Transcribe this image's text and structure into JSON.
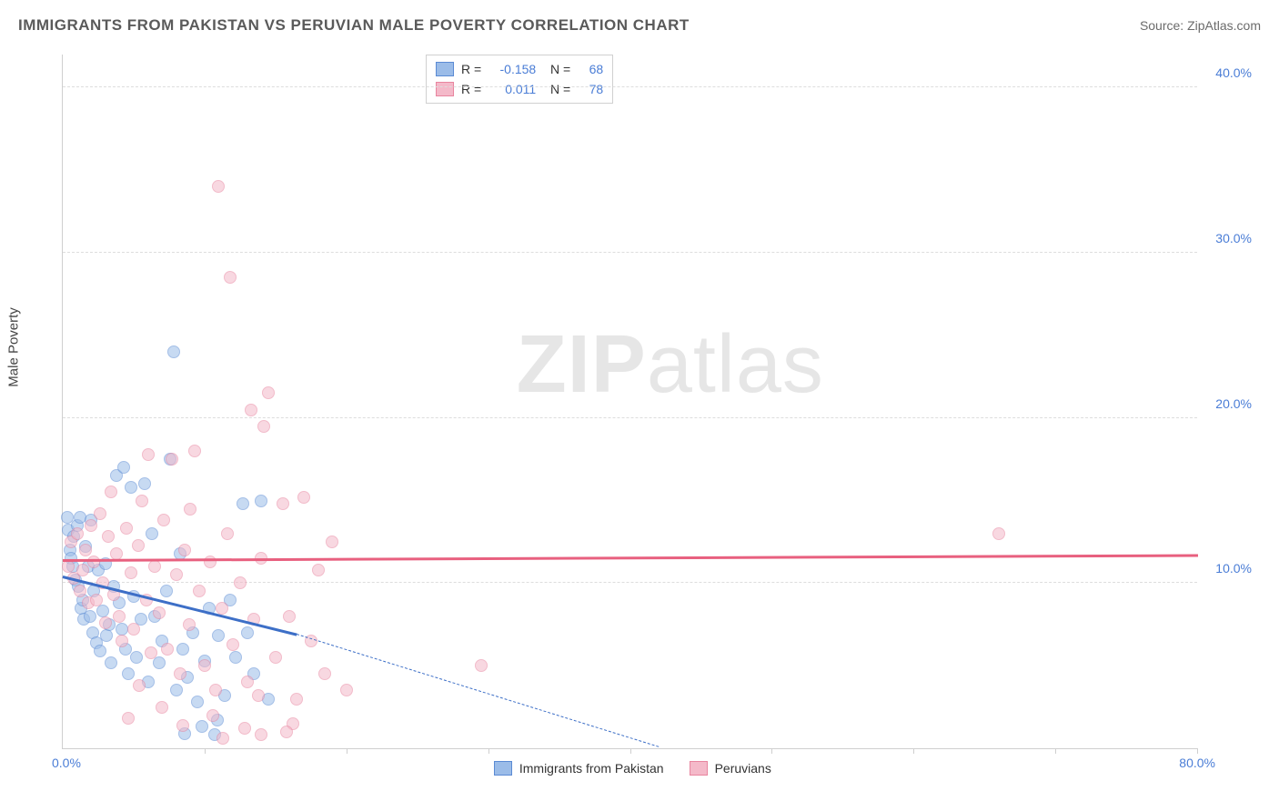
{
  "header": {
    "title": "IMMIGRANTS FROM PAKISTAN VS PERUVIAN MALE POVERTY CORRELATION CHART",
    "source": "Source: ZipAtlas.com"
  },
  "watermark": {
    "zip": "ZIP",
    "atlas": "atlas"
  },
  "chart": {
    "type": "scatter",
    "ylabel": "Male Poverty",
    "xlim": [
      0,
      80
    ],
    "ylim": [
      0,
      42
    ],
    "yticks": [
      10,
      20,
      30,
      40
    ],
    "ytick_labels": [
      "10.0%",
      "20.0%",
      "30.0%",
      "40.0%"
    ],
    "xticks": [
      0,
      10,
      20,
      30,
      40,
      50,
      60,
      70,
      80
    ],
    "x_origin_label": "0.0%",
    "x_max_label": "80.0%",
    "grid_color": "#dddddd",
    "axis_color": "#cfcfcf",
    "background_color": "#ffffff",
    "marker_radius": 7,
    "marker_opacity": 0.55,
    "marker_stroke_opacity": 0.85,
    "series": [
      {
        "name": "Immigrants from Pakistan",
        "fill": "#9bbce8",
        "stroke": "#5b8bd4",
        "r_value": "-0.158",
        "n_value": "68",
        "regression": {
          "x1": 0,
          "y1": 10.5,
          "x2": 16.5,
          "y2": 7.0,
          "extend_x2": 42,
          "extend_y2": 0.2,
          "color": "#3d6fc7"
        },
        "points": [
          [
            0.3,
            14.0
          ],
          [
            0.4,
            13.2
          ],
          [
            0.5,
            12.0
          ],
          [
            0.6,
            11.5
          ],
          [
            0.7,
            11.0
          ],
          [
            0.8,
            12.8
          ],
          [
            0.9,
            10.2
          ],
          [
            1.0,
            13.5
          ],
          [
            1.1,
            9.8
          ],
          [
            1.2,
            14.0
          ],
          [
            1.3,
            8.5
          ],
          [
            1.4,
            9.0
          ],
          [
            1.5,
            7.8
          ],
          [
            1.6,
            12.2
          ],
          [
            1.8,
            11.0
          ],
          [
            1.9,
            8.0
          ],
          [
            2.0,
            13.8
          ],
          [
            2.1,
            7.0
          ],
          [
            2.2,
            9.5
          ],
          [
            2.4,
            6.4
          ],
          [
            2.5,
            10.8
          ],
          [
            2.6,
            5.9
          ],
          [
            2.8,
            8.3
          ],
          [
            3.0,
            11.2
          ],
          [
            3.1,
            6.8
          ],
          [
            3.3,
            7.5
          ],
          [
            3.4,
            5.2
          ],
          [
            3.6,
            9.8
          ],
          [
            3.8,
            16.5
          ],
          [
            4.0,
            8.8
          ],
          [
            4.2,
            7.2
          ],
          [
            4.4,
            6.0
          ],
          [
            4.6,
            4.5
          ],
          [
            4.8,
            15.8
          ],
          [
            5.0,
            9.2
          ],
          [
            5.2,
            5.5
          ],
          [
            5.5,
            7.8
          ],
          [
            5.8,
            16.0
          ],
          [
            6.0,
            4.0
          ],
          [
            6.3,
            13.0
          ],
          [
            6.5,
            8.0
          ],
          [
            6.8,
            5.2
          ],
          [
            7.0,
            6.5
          ],
          [
            7.3,
            9.5
          ],
          [
            7.6,
            17.5
          ],
          [
            8.0,
            3.5
          ],
          [
            8.3,
            11.8
          ],
          [
            8.5,
            6.0
          ],
          [
            8.8,
            4.3
          ],
          [
            9.2,
            7.0
          ],
          [
            9.5,
            2.8
          ],
          [
            7.8,
            24.0
          ],
          [
            10.0,
            5.3
          ],
          [
            10.3,
            8.5
          ],
          [
            10.7,
            0.8
          ],
          [
            11.0,
            6.8
          ],
          [
            11.4,
            3.2
          ],
          [
            11.8,
            9.0
          ],
          [
            12.2,
            5.5
          ],
          [
            12.7,
            14.8
          ],
          [
            13.0,
            7.0
          ],
          [
            13.5,
            4.5
          ],
          [
            14.0,
            15.0
          ],
          [
            14.5,
            3.0
          ],
          [
            9.8,
            1.3
          ],
          [
            8.6,
            0.9
          ],
          [
            10.9,
            1.7
          ],
          [
            4.3,
            17.0
          ]
        ]
      },
      {
        "name": "Peruvians",
        "fill": "#f4b9c9",
        "stroke": "#e8859f",
        "r_value": "0.011",
        "n_value": "78",
        "regression": {
          "x1": 0,
          "y1": 11.5,
          "x2": 80,
          "y2": 11.8,
          "color": "#e8607f"
        },
        "points": [
          [
            0.4,
            11.0
          ],
          [
            0.6,
            12.5
          ],
          [
            0.8,
            10.3
          ],
          [
            1.0,
            13.0
          ],
          [
            1.2,
            9.5
          ],
          [
            1.4,
            10.8
          ],
          [
            1.6,
            12.0
          ],
          [
            1.8,
            8.8
          ],
          [
            2.0,
            13.5
          ],
          [
            2.2,
            11.3
          ],
          [
            2.4,
            9.0
          ],
          [
            2.6,
            14.2
          ],
          [
            2.8,
            10.0
          ],
          [
            3.0,
            7.6
          ],
          [
            3.2,
            12.8
          ],
          [
            3.4,
            15.5
          ],
          [
            3.6,
            9.3
          ],
          [
            3.8,
            11.8
          ],
          [
            4.0,
            8.0
          ],
          [
            4.2,
            6.5
          ],
          [
            4.5,
            13.3
          ],
          [
            4.8,
            10.6
          ],
          [
            5.0,
            7.2
          ],
          [
            5.3,
            12.3
          ],
          [
            5.6,
            15.0
          ],
          [
            5.9,
            9.0
          ],
          [
            6.2,
            5.8
          ],
          [
            6.5,
            11.0
          ],
          [
            6.8,
            8.2
          ],
          [
            7.1,
            13.8
          ],
          [
            7.4,
            6.0
          ],
          [
            7.7,
            17.5
          ],
          [
            8.0,
            10.5
          ],
          [
            8.3,
            4.5
          ],
          [
            8.6,
            12.0
          ],
          [
            8.9,
            7.5
          ],
          [
            9.3,
            18.0
          ],
          [
            9.6,
            9.5
          ],
          [
            10.0,
            5.0
          ],
          [
            10.4,
            11.3
          ],
          [
            10.8,
            3.5
          ],
          [
            11.2,
            8.5
          ],
          [
            11.6,
            13.0
          ],
          [
            12.0,
            6.3
          ],
          [
            12.5,
            10.0
          ],
          [
            13.0,
            4.0
          ],
          [
            13.3,
            20.5
          ],
          [
            13.5,
            7.8
          ],
          [
            14.0,
            11.5
          ],
          [
            14.5,
            21.5
          ],
          [
            15.0,
            5.5
          ],
          [
            15.5,
            14.8
          ],
          [
            14.2,
            19.5
          ],
          [
            16.0,
            8.0
          ],
          [
            16.5,
            3.0
          ],
          [
            17.0,
            15.2
          ],
          [
            17.5,
            6.5
          ],
          [
            18.0,
            10.8
          ],
          [
            18.5,
            4.5
          ],
          [
            19.0,
            12.5
          ],
          [
            11.0,
            34.0
          ],
          [
            11.8,
            28.5
          ],
          [
            9.0,
            14.5
          ],
          [
            13.8,
            3.2
          ],
          [
            16.2,
            1.5
          ],
          [
            14.0,
            0.8
          ],
          [
            20.0,
            3.5
          ],
          [
            12.8,
            1.2
          ],
          [
            29.5,
            5.0
          ],
          [
            15.8,
            1.0
          ],
          [
            10.6,
            2.0
          ],
          [
            66.0,
            13.0
          ],
          [
            6.0,
            17.8
          ],
          [
            4.6,
            1.8
          ],
          [
            5.4,
            3.8
          ],
          [
            7.0,
            2.5
          ],
          [
            8.5,
            1.4
          ],
          [
            11.3,
            0.6
          ]
        ]
      }
    ]
  }
}
